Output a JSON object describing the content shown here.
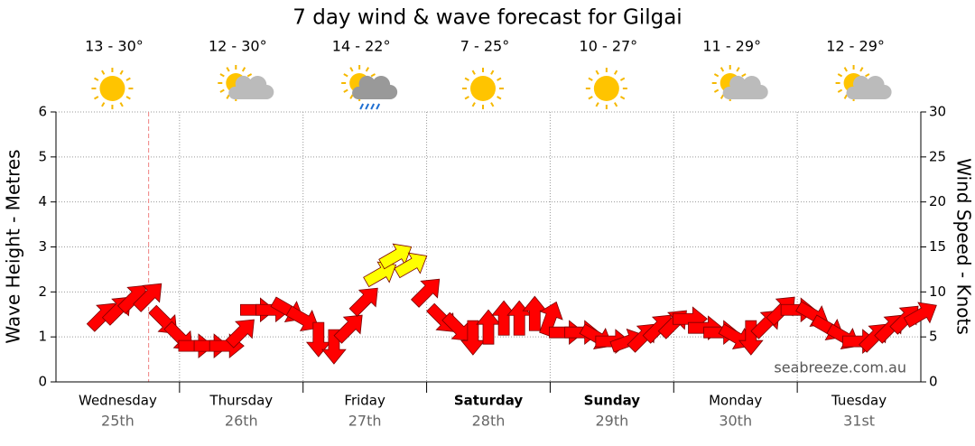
{
  "chart_data": {
    "type": "wind-arrows",
    "title": "7 day wind & wave forecast for Gilgai",
    "y_label": "Wave Height - Metres",
    "y2_label": "Wind Speed - Knots",
    "watermark": "seabreeze.com.au",
    "days": [
      "Wednesday",
      "Thursday",
      "Friday",
      "Saturday",
      "Sunday",
      "Monday",
      "Tuesday"
    ],
    "dates": [
      "25th",
      "26th",
      "27th",
      "28th",
      "29th",
      "30th",
      "31st"
    ],
    "emphasis": [
      false,
      false,
      false,
      true,
      true,
      false,
      false
    ],
    "temperatures": [
      "13 - 30°",
      "12 - 30°",
      "14 - 22°",
      "7 - 25°",
      "10 - 27°",
      "11 - 29°",
      "12 - 29°"
    ],
    "icons": [
      "sun",
      "partly-cloudy",
      "rain",
      "sun",
      "sun",
      "partly-cloudy",
      "partly-cloudy"
    ],
    "xlim": [
      0,
      168
    ],
    "xgrid": [
      24,
      48,
      72,
      96,
      120,
      144
    ],
    "now_marker": 18,
    "ylim": [
      0,
      6
    ],
    "yticks": [
      0,
      1,
      2,
      3,
      4,
      5,
      6
    ],
    "y2lim": [
      0,
      30
    ],
    "y2ticks": [
      0,
      5,
      10,
      15,
      20,
      25,
      30
    ],
    "grid": true,
    "series": [
      {
        "axis": "y2",
        "x": [
          9,
          12,
          15,
          18,
          21,
          24,
          27,
          30,
          33,
          36,
          39,
          42,
          45,
          48,
          51,
          54,
          57,
          60,
          63,
          66,
          69,
          72,
          75,
          78,
          81,
          84,
          87,
          90,
          93,
          96,
          99,
          102,
          105,
          108,
          111,
          114,
          117,
          120,
          123,
          126,
          129,
          132,
          135,
          138,
          141,
          144,
          147,
          150,
          153,
          156,
          159,
          162,
          165,
          168
        ],
        "values": [
          7.3,
          8,
          9.3,
          9.5,
          6.8,
          5,
          4,
          4,
          4,
          5.5,
          8,
          8,
          8,
          7,
          4.8,
          4,
          6,
          9,
          12,
          14,
          13,
          10,
          7,
          6,
          5,
          6,
          7,
          7,
          7.5,
          7,
          5.5,
          5.5,
          5,
          4.5,
          4.5,
          5,
          6,
          6.5,
          7,
          6,
          5.5,
          5,
          5,
          6.5,
          8,
          8,
          7.5,
          6,
          5,
          4.5,
          5,
          6,
          7,
          7.5
        ],
        "directions": [
          225,
          225,
          225,
          225,
          315,
          315,
          270,
          270,
          270,
          225,
          270,
          270,
          300,
          300,
          0,
          0,
          225,
          225,
          240,
          240,
          240,
          225,
          315,
          315,
          0,
          180,
          180,
          180,
          180,
          200,
          270,
          270,
          300,
          270,
          250,
          225,
          225,
          225,
          270,
          270,
          270,
          300,
          0,
          225,
          225,
          270,
          300,
          300,
          300,
          270,
          225,
          225,
          225,
          240
        ],
        "colors": [
          "#ff0000",
          "#ff0000",
          "#ff0000",
          "#ff0000",
          "#ff0000",
          "#ff0000",
          "#ff0000",
          "#ff0000",
          "#ff0000",
          "#ff0000",
          "#ff0000",
          "#ff0000",
          "#ff0000",
          "#ff0000",
          "#ff0000",
          "#ff0000",
          "#ff0000",
          "#ff0000",
          "#ffff00",
          "#ffff00",
          "#ffff00",
          "#ff0000",
          "#ff0000",
          "#ff0000",
          "#ff0000",
          "#ff0000",
          "#ff0000",
          "#ff0000",
          "#ff0000",
          "#ff0000",
          "#ff0000",
          "#ff0000",
          "#ff0000",
          "#ff0000",
          "#ff0000",
          "#ff0000",
          "#ff0000",
          "#ff0000",
          "#ff0000",
          "#ff0000",
          "#ff0000",
          "#ff0000",
          "#ff0000",
          "#ff0000",
          "#ff0000",
          "#ff0000",
          "#ff0000",
          "#ff0000",
          "#ff0000",
          "#ff0000",
          "#ff0000",
          "#ff0000",
          "#ff0000",
          "#ff0000"
        ]
      }
    ]
  }
}
